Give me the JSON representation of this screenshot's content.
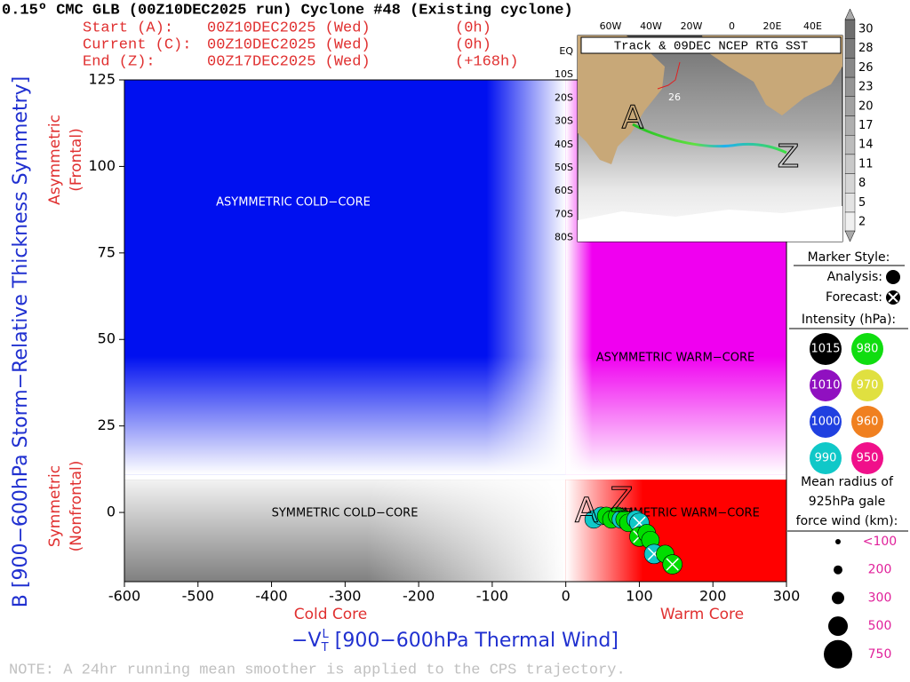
{
  "header": {
    "title": "0.15º CMC GLB (00Z10DEC2025 run) Cyclone #48 (Existing cyclone)",
    "lines": [
      {
        "label": "Start (A):",
        "time": "00Z10DEC2025 (Wed)",
        "offset": "(0h)"
      },
      {
        "label": "Current (C):",
        "time": "00Z10DEC2025 (Wed)",
        "offset": "(0h)"
      },
      {
        "label": "End (Z):",
        "time": "00Z17DEC2025 (Wed)",
        "offset": "(+168h)"
      }
    ]
  },
  "chart_data": {
    "type": "scatter",
    "xlabel": {
      "prefix": "−V",
      "sub": "T",
      "sup": "L",
      "rest": " [900−600hPa Thermal Wind]"
    },
    "ylabel": "B [900−600hPa Storm−Relative Thickness Symmetry]",
    "x_side_labels": [
      "Cold Core",
      "Warm Core"
    ],
    "y_side_labels": [
      [
        "Asymmetric",
        "(Frontal)"
      ],
      [
        "Symmetric",
        "(Nonfrontal)"
      ]
    ],
    "quadrant_labels": [
      "ASYMMETRIC COLD−CORE",
      "ASYMMETRIC WARM−CORE",
      "SYMMETRIC COLD−CORE",
      "SYMMETRIC WARM−CORE"
    ],
    "quadrant_split": {
      "x": 0,
      "y": 10
    },
    "xlim": [
      -600,
      300
    ],
    "xticks": [
      -600,
      -500,
      -400,
      -300,
      -200,
      -100,
      0,
      100,
      200,
      300
    ],
    "ylim": [
      -20,
      125
    ],
    "yticks": [
      0,
      25,
      50,
      75,
      100,
      125
    ],
    "track": {
      "x": [
        38,
        48,
        55,
        62,
        70,
        75,
        80,
        85,
        95,
        100,
        100,
        110,
        115,
        120,
        135,
        145
      ],
      "y": [
        -2,
        -1,
        -1,
        -2,
        -1,
        -2,
        -2,
        -3,
        -2,
        -3,
        -7,
        -6,
        -8,
        -12,
        -12,
        -15
      ],
      "colors": [
        "#10c8c8",
        "#10c8c8",
        "#00dd00",
        "#00dd00",
        "#00dd00",
        "#10c8c8",
        "#00dd00",
        "#00dd00",
        "#10c8c8",
        "#10c8c8",
        "#00dd00",
        "#00dd00",
        "#00dd00",
        "#10c8c8",
        "#00dd00",
        "#00dd00"
      ],
      "forecast": [
        false,
        false,
        false,
        false,
        false,
        false,
        false,
        false,
        false,
        true,
        true,
        false,
        false,
        true,
        false,
        true
      ]
    },
    "markers": [
      {
        "text": "A",
        "x": 28,
        "y": 0
      },
      {
        "text": "Z",
        "x": 76,
        "y": 3
      }
    ]
  },
  "inset": {
    "title": "Track & 09DEC NCEP RTG SST",
    "lon_labels": [
      "60W",
      "40W",
      "20W",
      "0",
      "20E",
      "40E"
    ],
    "lat_labels": [
      "EQ",
      "10S",
      "20S",
      "30S",
      "40S",
      "50S",
      "60S",
      "70S",
      "80S"
    ],
    "contour_label": "26",
    "start": "A",
    "end": "Z",
    "colorbar_ticks": [
      30,
      28,
      26,
      23,
      20,
      17,
      14,
      11,
      8,
      5,
      2
    ]
  },
  "legend": {
    "marker_title": "Marker Style:",
    "analysis": "Analysis:",
    "forecast": "Forecast:",
    "intensity_title": "Intensity (hPa):",
    "intensity": [
      {
        "label": "1015",
        "color": "#000000"
      },
      {
        "label": "980",
        "color": "#10dd10"
      },
      {
        "label": "1010",
        "color": "#9010c0"
      },
      {
        "label": "970",
        "color": "#e0e040"
      },
      {
        "label": "1000",
        "color": "#2040e0"
      },
      {
        "label": "960",
        "color": "#f08020"
      },
      {
        "label": "990",
        "color": "#10c8c8"
      },
      {
        "label": "950",
        "color": "#f0108a"
      }
    ],
    "radius_title": [
      "Mean radius of",
      "925hPa gale",
      "force wind (km):"
    ],
    "radius": [
      "<100",
      "200",
      "300",
      "500",
      "750"
    ]
  },
  "note": "NOTE:  A 24hr running mean smoother is applied to the CPS trajectory."
}
